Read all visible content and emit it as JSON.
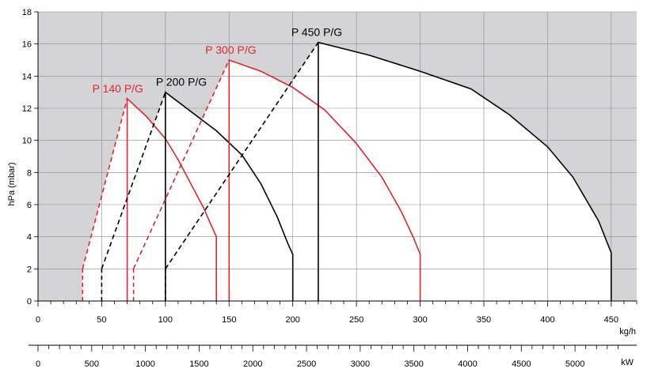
{
  "chart_data": {
    "type": "area",
    "ylabel": "hPa (mbar)",
    "x_unit": "kg/h",
    "kw_unit": "kW",
    "xlim": [
      0,
      470
    ],
    "ylim": [
      0,
      18
    ],
    "xticks": [
      0,
      50,
      100,
      150,
      200,
      250,
      300,
      350,
      400,
      450
    ],
    "yticks": [
      0,
      2,
      4,
      6,
      8,
      10,
      12,
      14,
      16,
      18
    ],
    "kw_ticks": [
      0,
      500,
      1000,
      1500,
      2000,
      2500,
      3000,
      3500,
      4000,
      4500,
      5000
    ],
    "kw_per_kgh": 11.86,
    "grid": true,
    "colors": {
      "black_series": "#000000",
      "red_series": "#e0262b",
      "outside_area": "#d4d4d6",
      "grid": "#8a8a8a"
    },
    "series": [
      {
        "name": "P 140 P/G",
        "color": "#e0262b",
        "ignition": [
          [
            35,
            0
          ],
          [
            35,
            2
          ],
          [
            70,
            12.6
          ]
        ],
        "envelope": [
          [
            70,
            0
          ],
          [
            70,
            12.6
          ],
          [
            85,
            11.5
          ],
          [
            100,
            10.1
          ],
          [
            110,
            8.8
          ],
          [
            120,
            7.3
          ],
          [
            130,
            5.8
          ],
          [
            135,
            4.9
          ],
          [
            140,
            4.0
          ],
          [
            140,
            0
          ]
        ]
      },
      {
        "name": "P 200 P/G",
        "color": "#000000",
        "ignition": [
          [
            50,
            0
          ],
          [
            50,
            2
          ],
          [
            100,
            13.0
          ]
        ],
        "envelope": [
          [
            100,
            0
          ],
          [
            100,
            13.0
          ],
          [
            120,
            11.8
          ],
          [
            140,
            10.6
          ],
          [
            160,
            9.1
          ],
          [
            175,
            7.3
          ],
          [
            188,
            5.2
          ],
          [
            196,
            3.6
          ],
          [
            200,
            2.9
          ],
          [
            200,
            0
          ]
        ]
      },
      {
        "name": "P 300 P/G",
        "color": "#e0262b",
        "ignition": [
          [
            75,
            0
          ],
          [
            75,
            2
          ],
          [
            150,
            15.0
          ]
        ],
        "envelope": [
          [
            150,
            0
          ],
          [
            150,
            15.0
          ],
          [
            175,
            14.3
          ],
          [
            200,
            13.3
          ],
          [
            225,
            11.9
          ],
          [
            250,
            9.8
          ],
          [
            270,
            7.7
          ],
          [
            285,
            5.6
          ],
          [
            295,
            3.9
          ],
          [
            300,
            2.9
          ],
          [
            300,
            0
          ]
        ]
      },
      {
        "name": "P 450 P/G",
        "color": "#000000",
        "ignition": [
          [
            100,
            0
          ],
          [
            100,
            2
          ],
          [
            220,
            16.1
          ]
        ],
        "envelope": [
          [
            220,
            0
          ],
          [
            220,
            16.1
          ],
          [
            260,
            15.3
          ],
          [
            300,
            14.3
          ],
          [
            340,
            13.2
          ],
          [
            370,
            11.6
          ],
          [
            400,
            9.6
          ],
          [
            420,
            7.7
          ],
          [
            440,
            5.0
          ],
          [
            450,
            3.0
          ],
          [
            450,
            0
          ]
        ]
      }
    ]
  }
}
